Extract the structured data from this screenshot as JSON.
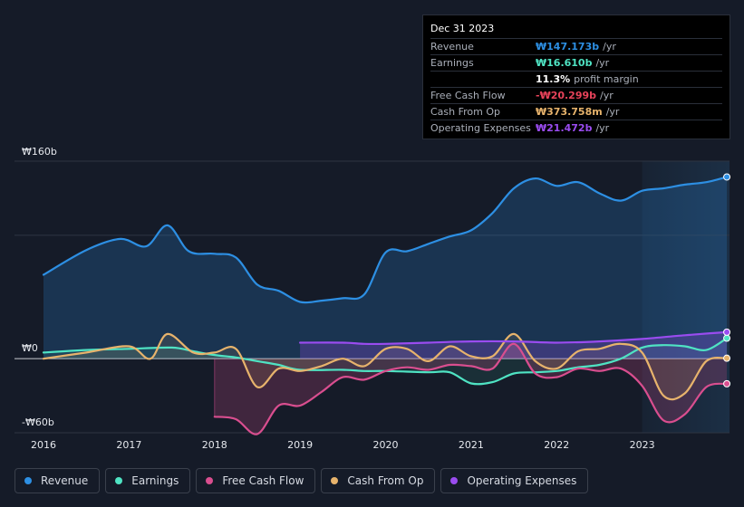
{
  "chart_data": {
    "type": "area",
    "currency_axis_labels": {
      "top": "₩160b",
      "zero": "₩0",
      "bottom": "-₩60b"
    },
    "ylim": [
      -60,
      160
    ],
    "x_ticks": [
      "2016",
      "2017",
      "2018",
      "2019",
      "2020",
      "2021",
      "2022",
      "2023"
    ],
    "xlim": [
      2016.0,
      2024.0
    ],
    "series": [
      {
        "name": "Revenue",
        "color": "#2d8fe3",
        "points": [
          [
            2016.0,
            68
          ],
          [
            2016.5,
            88
          ],
          [
            2016.9,
            97
          ],
          [
            2017.2,
            91
          ],
          [
            2017.45,
            108
          ],
          [
            2017.7,
            87
          ],
          [
            2018.0,
            85
          ],
          [
            2018.25,
            82
          ],
          [
            2018.5,
            60
          ],
          [
            2018.75,
            55
          ],
          [
            2019.0,
            46
          ],
          [
            2019.25,
            47
          ],
          [
            2019.5,
            49
          ],
          [
            2019.75,
            52
          ],
          [
            2020.0,
            86
          ],
          [
            2020.25,
            87
          ],
          [
            2020.5,
            93
          ],
          [
            2020.75,
            99
          ],
          [
            2021.0,
            104
          ],
          [
            2021.25,
            118
          ],
          [
            2021.5,
            138
          ],
          [
            2021.75,
            146
          ],
          [
            2022.0,
            140
          ],
          [
            2022.25,
            143
          ],
          [
            2022.5,
            134
          ],
          [
            2022.75,
            128
          ],
          [
            2023.0,
            136
          ],
          [
            2023.25,
            138
          ],
          [
            2023.5,
            141
          ],
          [
            2023.75,
            143
          ],
          [
            2023.99,
            147.2
          ]
        ]
      },
      {
        "name": "Earnings",
        "color": "#4fe3c3",
        "points": [
          [
            2016.0,
            5
          ],
          [
            2016.5,
            7
          ],
          [
            2017.0,
            8
          ],
          [
            2017.5,
            9
          ],
          [
            2017.75,
            6
          ],
          [
            2018.0,
            3
          ],
          [
            2018.25,
            1
          ],
          [
            2018.5,
            -2
          ],
          [
            2018.75,
            -5
          ],
          [
            2019.0,
            -9
          ],
          [
            2019.5,
            -9
          ],
          [
            2019.75,
            -10
          ],
          [
            2020.0,
            -10
          ],
          [
            2020.5,
            -11
          ],
          [
            2020.75,
            -11
          ],
          [
            2021.0,
            -20
          ],
          [
            2021.25,
            -19
          ],
          [
            2021.5,
            -12
          ],
          [
            2021.75,
            -11
          ],
          [
            2022.0,
            -10
          ],
          [
            2022.25,
            -7
          ],
          [
            2022.5,
            -5
          ],
          [
            2022.75,
            0
          ],
          [
            2023.0,
            9
          ],
          [
            2023.25,
            11
          ],
          [
            2023.5,
            10
          ],
          [
            2023.75,
            7
          ],
          [
            2023.99,
            16.6
          ]
        ]
      },
      {
        "name": "Free Cash Flow",
        "color": "#d94e8f",
        "points": [
          [
            2018.0,
            -47
          ],
          [
            2018.25,
            -49
          ],
          [
            2018.5,
            -61
          ],
          [
            2018.75,
            -38
          ],
          [
            2019.0,
            -38
          ],
          [
            2019.25,
            -27
          ],
          [
            2019.5,
            -15
          ],
          [
            2019.75,
            -17
          ],
          [
            2020.0,
            -10
          ],
          [
            2020.25,
            -7
          ],
          [
            2020.5,
            -9
          ],
          [
            2020.75,
            -5
          ],
          [
            2021.0,
            -6
          ],
          [
            2021.25,
            -8
          ],
          [
            2021.5,
            12
          ],
          [
            2021.75,
            -12
          ],
          [
            2022.0,
            -15
          ],
          [
            2022.25,
            -8
          ],
          [
            2022.5,
            -10
          ],
          [
            2022.75,
            -8
          ],
          [
            2023.0,
            -22
          ],
          [
            2023.25,
            -50
          ],
          [
            2023.5,
            -45
          ],
          [
            2023.75,
            -23
          ],
          [
            2023.99,
            -20.3
          ]
        ]
      },
      {
        "name": "Cash From Op",
        "color": "#e7b36c",
        "points": [
          [
            2016.0,
            0
          ],
          [
            2016.5,
            5
          ],
          [
            2017.0,
            10
          ],
          [
            2017.25,
            0
          ],
          [
            2017.45,
            20
          ],
          [
            2017.75,
            5
          ],
          [
            2018.0,
            5
          ],
          [
            2018.25,
            8
          ],
          [
            2018.5,
            -23
          ],
          [
            2018.75,
            -8
          ],
          [
            2019.0,
            -10
          ],
          [
            2019.25,
            -6
          ],
          [
            2019.5,
            0
          ],
          [
            2019.75,
            -6
          ],
          [
            2020.0,
            8
          ],
          [
            2020.25,
            8
          ],
          [
            2020.5,
            -2
          ],
          [
            2020.75,
            10
          ],
          [
            2021.0,
            2
          ],
          [
            2021.25,
            2
          ],
          [
            2021.5,
            20
          ],
          [
            2021.75,
            -2
          ],
          [
            2022.0,
            -8
          ],
          [
            2022.25,
            6
          ],
          [
            2022.5,
            8
          ],
          [
            2022.75,
            12
          ],
          [
            2023.0,
            5
          ],
          [
            2023.25,
            -30
          ],
          [
            2023.5,
            -28
          ],
          [
            2023.75,
            -2
          ],
          [
            2023.99,
            0.37
          ]
        ]
      },
      {
        "name": "Operating Expenses",
        "color": "#9a4cf0",
        "points": [
          [
            2019.0,
            13
          ],
          [
            2019.5,
            13
          ],
          [
            2019.75,
            12
          ],
          [
            2020.0,
            12
          ],
          [
            2020.5,
            13
          ],
          [
            2021.0,
            14
          ],
          [
            2021.5,
            14
          ],
          [
            2022.0,
            13
          ],
          [
            2022.5,
            14
          ],
          [
            2023.0,
            16
          ],
          [
            2023.5,
            19
          ],
          [
            2023.99,
            21.5
          ]
        ]
      }
    ],
    "forecast_shade_start": 2023.0,
    "tooltip": {
      "date": "Dec 31 2023",
      "rows": [
        {
          "label": "Revenue",
          "value": "₩147.173b",
          "unit": "/yr",
          "color": "#2d8fe3"
        },
        {
          "label": "Earnings",
          "value": "₩16.610b",
          "unit": "/yr",
          "color": "#4fe3c3"
        },
        {
          "label": "",
          "value": "11.3%",
          "unit": "profit margin",
          "color": "#ffffff"
        },
        {
          "label": "Free Cash Flow",
          "value": "-₩20.299b",
          "unit": "/yr",
          "color": "#e8435a"
        },
        {
          "label": "Cash From Op",
          "value": "₩373.758m",
          "unit": "/yr",
          "color": "#e7b36c"
        },
        {
          "label": "Operating Expenses",
          "value": "₩21.472b",
          "unit": "/yr",
          "color": "#9a4cf0"
        }
      ]
    },
    "legend": [
      "Revenue",
      "Earnings",
      "Free Cash Flow",
      "Cash From Op",
      "Operating Expenses"
    ]
  }
}
